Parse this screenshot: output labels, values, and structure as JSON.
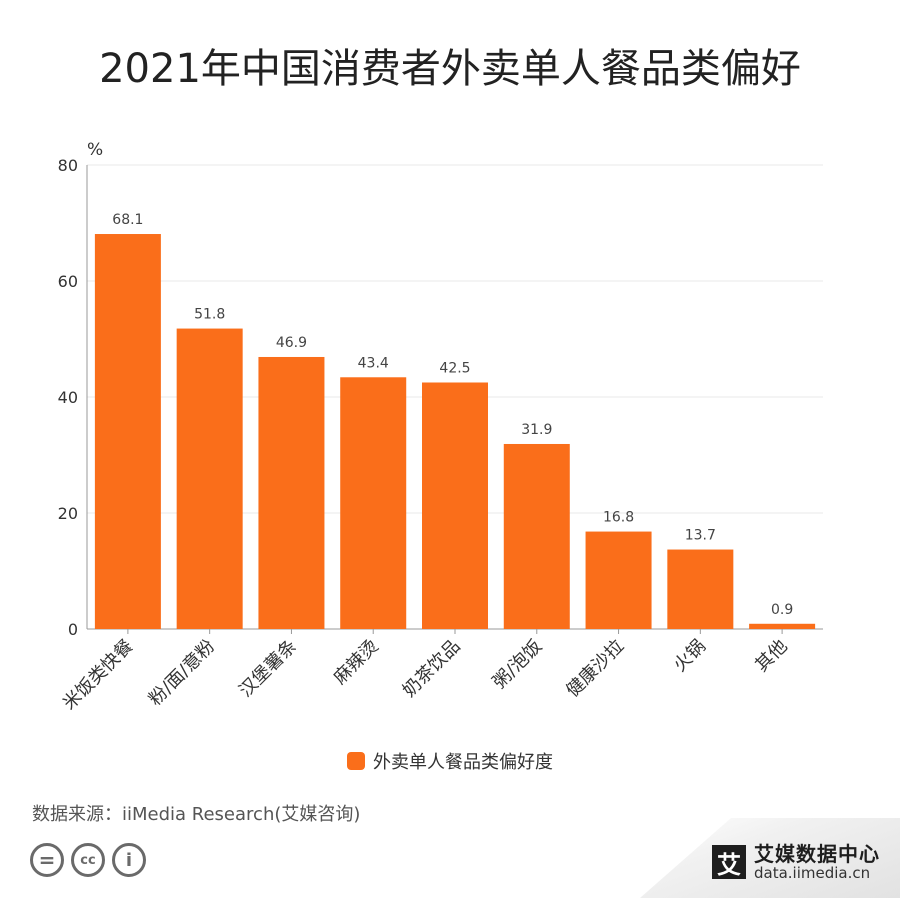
{
  "title": "2021年中国消费者外卖单人餐品类偏好",
  "colors": {
    "bar": "#FA6E1A",
    "grid": "#e8e8e8",
    "axis": "#999999"
  },
  "chart_data": {
    "type": "bar",
    "categories": [
      "米饭类快餐",
      "粉/面/意粉",
      "汉堡薯条",
      "麻辣烫",
      "奶茶饮品",
      "粥/泡饭",
      "健康沙拉",
      "火锅",
      "其他"
    ],
    "series": [
      {
        "name": "外卖单人餐品类偏好度",
        "values": [
          68.1,
          51.8,
          46.9,
          43.4,
          42.5,
          31.9,
          16.8,
          13.7,
          0.9
        ]
      }
    ],
    "value_labels": [
      "68.1",
      "51.8",
      "46.9",
      "43.4",
      "42.5",
      "31.9",
      "16.8",
      "13.7",
      "0.9"
    ],
    "ylabel": "%",
    "ylim": [
      0,
      80
    ],
    "yticks": [
      0,
      20,
      40,
      60,
      80
    ],
    "grid": true,
    "legend_position": "bottom"
  },
  "source": "数据来源：iiMedia Research(艾媒咨询)",
  "license_icons": [
    "equals-icon",
    "cc-icon",
    "person-icon"
  ],
  "license_glyphs": [
    "=",
    "cc",
    "i"
  ],
  "brand": {
    "mark": "艾",
    "name": "艾媒数据中心",
    "url": "data.iimedia.cn"
  }
}
